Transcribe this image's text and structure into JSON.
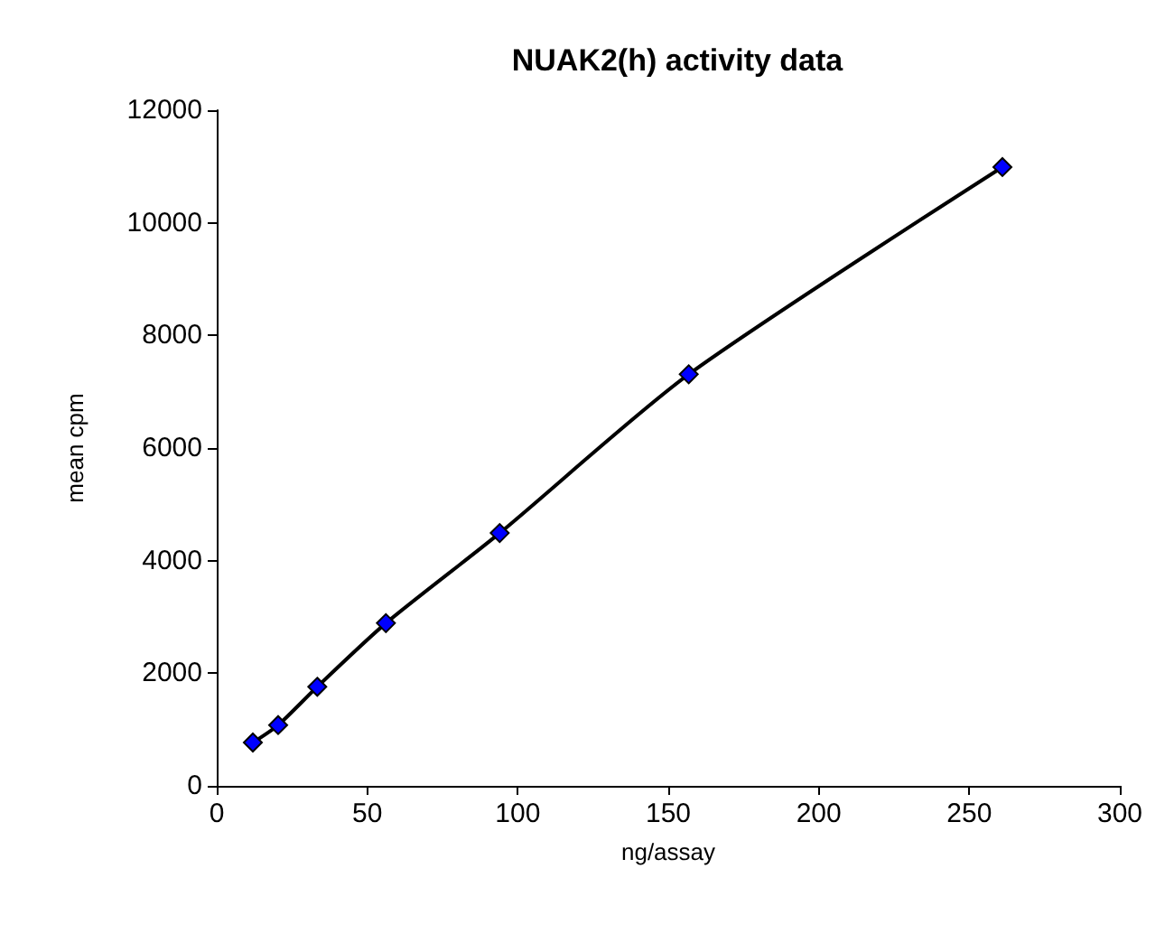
{
  "chart_data": {
    "type": "line",
    "title": "NUAK2(h) activity data",
    "xlabel": "ng/assay",
    "ylabel": "mean cpm",
    "x": [
      12,
      20.4,
      33.4,
      56.2,
      94,
      156.8,
      261
    ],
    "series": [
      {
        "color": "#0000ff",
        "values": [
          770,
          1080,
          1760,
          2890,
          4490,
          7310,
          10990
        ]
      }
    ],
    "xlim": [
      0,
      300
    ],
    "xticks": [
      0,
      50,
      100,
      150,
      200,
      250,
      300
    ],
    "ylim": [
      0,
      12000
    ],
    "yticks": [
      0,
      2000,
      4000,
      6000,
      8000,
      10000,
      12000
    ],
    "grid": false,
    "marker": "diamond",
    "line_style": "solid"
  }
}
